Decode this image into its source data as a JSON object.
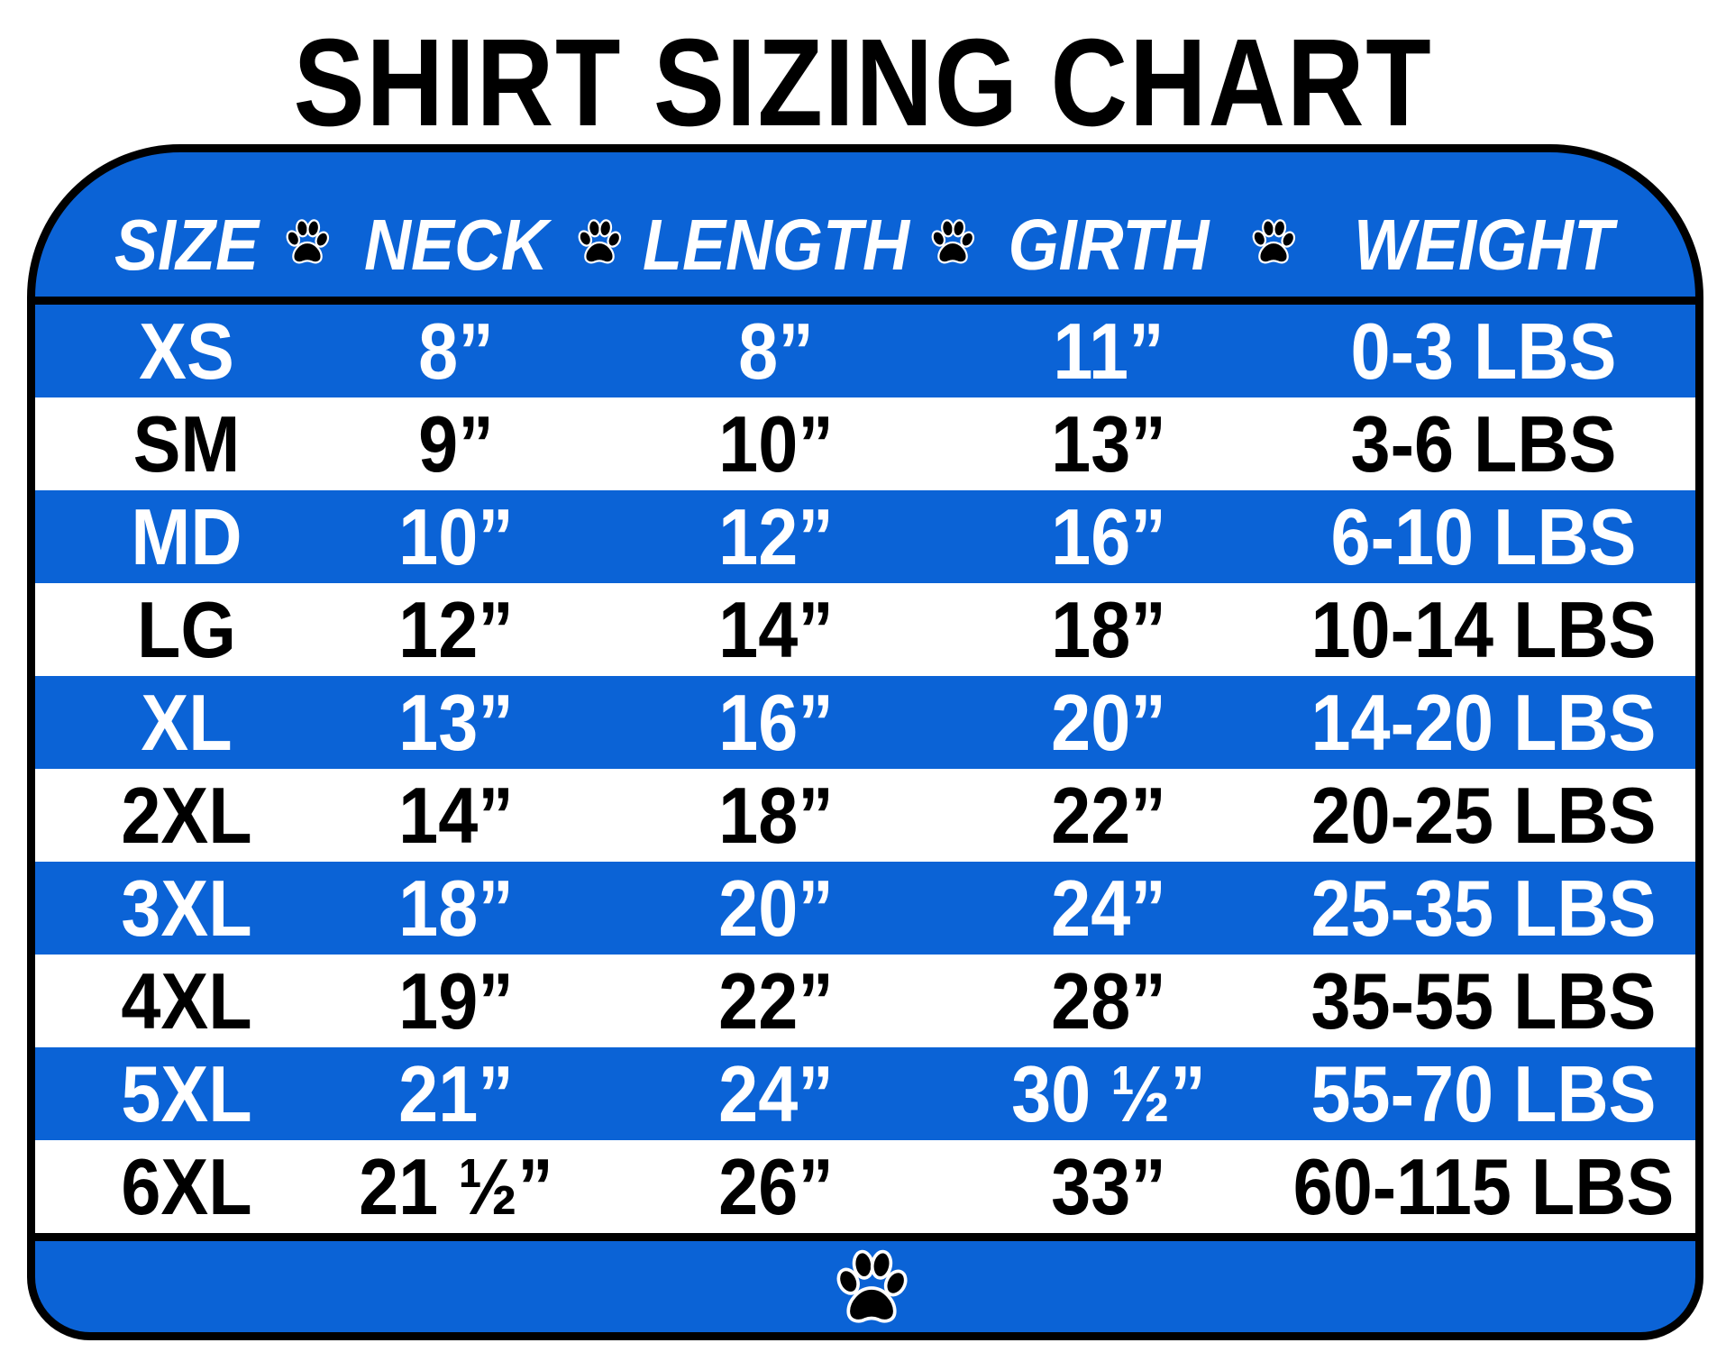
{
  "title": "SHIRT SIZING CHART",
  "colors": {
    "blue": "#0b63d6",
    "border": "#000000",
    "text_on_blue": "#ffffff",
    "text_on_white": "#000000"
  },
  "header": {
    "columns": [
      "SIZE",
      "NECK",
      "LENGTH",
      "GIRTH",
      "WEIGHT"
    ],
    "separator_icon": "paw-print-icon"
  },
  "rows": [
    {
      "size": "XS",
      "neck": "8”",
      "length": "8”",
      "girth": "11”",
      "weight": "0-3 LBS"
    },
    {
      "size": "SM",
      "neck": "9”",
      "length": "10”",
      "girth": "13”",
      "weight": "3-6 LBS"
    },
    {
      "size": "MD",
      "neck": "10”",
      "length": "12”",
      "girth": "16”",
      "weight": "6-10 LBS"
    },
    {
      "size": "LG",
      "neck": "12”",
      "length": "14”",
      "girth": "18”",
      "weight": "10-14 LBS"
    },
    {
      "size": "XL",
      "neck": "13”",
      "length": "16”",
      "girth": "20”",
      "weight": "14-20 LBS"
    },
    {
      "size": "2XL",
      "neck": "14”",
      "length": "18”",
      "girth": "22”",
      "weight": "20-25 LBS"
    },
    {
      "size": "3XL",
      "neck": "18”",
      "length": "20”",
      "girth": "24”",
      "weight": "25-35 LBS"
    },
    {
      "size": "4XL",
      "neck": "19”",
      "length": "22”",
      "girth": "28”",
      "weight": "35-55 LBS"
    },
    {
      "size": "5XL",
      "neck": "21”",
      "length": "24”",
      "girth": "30 ½”",
      "weight": "55-70 LBS"
    },
    {
      "size": "6XL",
      "neck": "21 ½”",
      "length": "26”",
      "girth": "33”",
      "weight": "60-115 LBS"
    }
  ],
  "footer": {
    "icon": "paw-print-icon"
  }
}
